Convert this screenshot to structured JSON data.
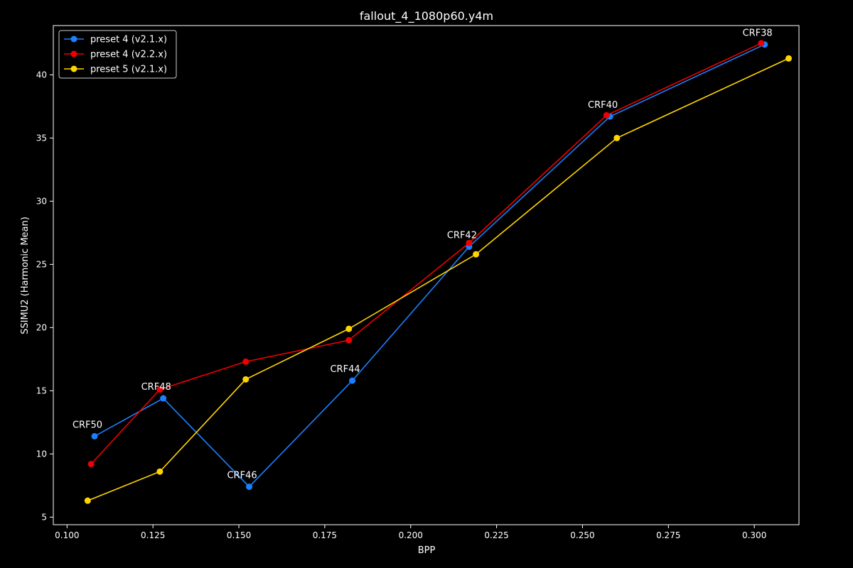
{
  "chart_data": {
    "type": "line",
    "title": "fallout_4_1080p60.y4m",
    "xlabel": "BPP",
    "ylabel": "SSIMU2 (Harmonic Mean)",
    "xlim": [
      0.096,
      0.313
    ],
    "ylim": [
      4.4,
      43.9
    ],
    "xticks": [
      0.1,
      0.125,
      0.15,
      0.175,
      0.2,
      0.225,
      0.25,
      0.275,
      0.3
    ],
    "xtick_labels": [
      "0.100",
      "0.125",
      "0.150",
      "0.175",
      "0.200",
      "0.225",
      "0.250",
      "0.275",
      "0.300"
    ],
    "yticks": [
      5,
      10,
      15,
      20,
      25,
      30,
      35,
      40
    ],
    "ytick_labels": [
      "5",
      "10",
      "15",
      "20",
      "25",
      "30",
      "35",
      "40"
    ],
    "grid": false,
    "legend_position": "top-left",
    "series": [
      {
        "name": "preset 4 (v2.1.x)",
        "color": "#1a80ff",
        "x": [
          0.108,
          0.128,
          0.153,
          0.183,
          0.217,
          0.258,
          0.303
        ],
        "y": [
          11.4,
          14.4,
          7.4,
          15.8,
          26.4,
          36.7,
          42.4
        ]
      },
      {
        "name": "preset 4 (v2.2.x)",
        "color": "#ee0000",
        "x": [
          0.107,
          0.127,
          0.152,
          0.182,
          0.217,
          0.257,
          0.302
        ],
        "y": [
          9.2,
          15.1,
          17.3,
          19.0,
          26.7,
          36.8,
          42.5
        ]
      },
      {
        "name": "preset 5 (v2.1.x)",
        "color": "#ffd500",
        "x": [
          0.106,
          0.127,
          0.152,
          0.182,
          0.219,
          0.26,
          0.31
        ],
        "y": [
          6.3,
          8.6,
          15.9,
          19.9,
          25.8,
          35.0,
          41.3
        ]
      }
    ],
    "annotations": [
      {
        "text": "CRF50",
        "x": 0.108,
        "y": 11.4
      },
      {
        "text": "CRF48",
        "x": 0.128,
        "y": 14.4
      },
      {
        "text": "CRF46",
        "x": 0.153,
        "y": 7.4
      },
      {
        "text": "CRF44",
        "x": 0.183,
        "y": 15.8
      },
      {
        "text": "CRF42",
        "x": 0.217,
        "y": 26.4
      },
      {
        "text": "CRF40",
        "x": 0.258,
        "y": 36.7
      },
      {
        "text": "CRF38",
        "x": 0.303,
        "y": 42.4
      }
    ]
  }
}
